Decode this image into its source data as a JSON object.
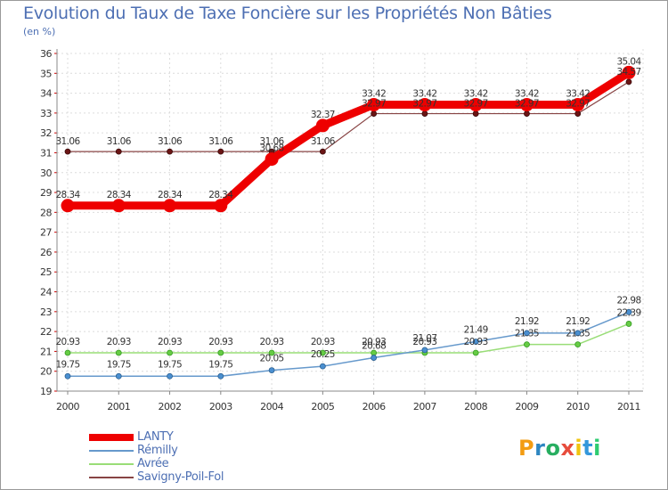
{
  "header": {
    "title": "Evolution du Taux de Taxe Foncière sur les Propriétés Non Bâties",
    "unit": "(en %)"
  },
  "brand": {
    "letters": [
      "P",
      "r",
      "o",
      "x",
      "i",
      "t",
      "i"
    ],
    "colors": [
      "#f39c12",
      "#2e86c1",
      "#27ae60",
      "#e74c3c",
      "#f1c40f",
      "#3498db",
      "#2ecc71"
    ]
  },
  "chart_data": {
    "type": "line",
    "title": "Evolution du Taux de Taxe Foncière sur les Propriétés Non Bâties",
    "ylabel": "(en %)",
    "xlabel": "",
    "categories": [
      "2000",
      "2001",
      "2002",
      "2003",
      "2004",
      "2005",
      "2006",
      "2007",
      "2008",
      "2009",
      "2010",
      "2011"
    ],
    "ylim": [
      19,
      36
    ],
    "yticks": [
      "19",
      "20",
      "21",
      "22",
      "23",
      "24",
      "25",
      "26",
      "27",
      "28",
      "29",
      "30",
      "31",
      "32",
      "33",
      "34",
      "35",
      "36"
    ],
    "grid": true,
    "legend_position": "bottom-left",
    "series": [
      {
        "name": "LANTY",
        "color": "#ee0000",
        "values": [
          28.34,
          28.34,
          28.34,
          28.34,
          30.68,
          32.37,
          33.42,
          33.42,
          33.42,
          33.42,
          33.42,
          35.04
        ],
        "labels": [
          "28.34",
          "28.34",
          "28.34",
          "28.34",
          "30.68",
          "32.37",
          "33.42",
          "33.42",
          "33.42",
          "33.42",
          "33.42",
          "35.04"
        ]
      },
      {
        "name": "Rémilly",
        "color": "#6699cc",
        "values": [
          19.75,
          19.75,
          19.75,
          19.75,
          20.05,
          20.25,
          20.68,
          21.07,
          21.49,
          21.92,
          21.92,
          22.98
        ],
        "labels": [
          "19.75",
          "19.75",
          "19.75",
          "19.75",
          "20.05",
          "20.25",
          "20.68",
          "21.07",
          "21.49",
          "21.92",
          "21.92",
          "22.98"
        ]
      },
      {
        "name": "Avrée",
        "color": "#99dd77",
        "values": [
          20.93,
          20.93,
          20.93,
          20.93,
          20.93,
          20.93,
          20.93,
          20.93,
          20.93,
          21.35,
          21.35,
          22.39
        ],
        "labels": [
          "20.93",
          "20.93",
          "20.93",
          "20.93",
          "20.93",
          "20.93",
          "20.93",
          "20.93",
          "20.93",
          "21.35",
          "21.35",
          "22.39"
        ]
      },
      {
        "name": "Savigny-Poil-Fol",
        "color": "#884444",
        "values": [
          31.06,
          31.06,
          31.06,
          31.06,
          31.06,
          31.06,
          32.97,
          32.97,
          32.97,
          32.97,
          32.97,
          34.57
        ],
        "labels": [
          "31.06",
          "31.06",
          "31.06",
          "31.06",
          "31.06",
          "31.06",
          "32.97",
          "32.97",
          "32.97",
          "32.97",
          "32.97",
          "34.57"
        ]
      }
    ]
  }
}
